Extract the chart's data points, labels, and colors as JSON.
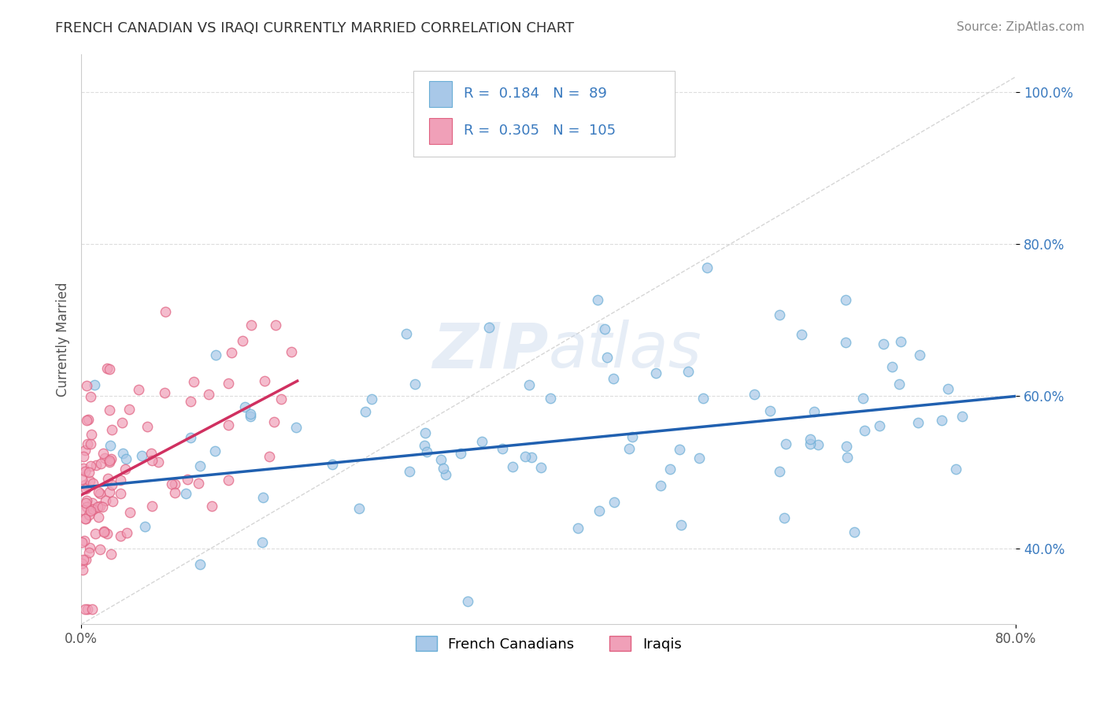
{
  "title": "FRENCH CANADIAN VS IRAQI CURRENTLY MARRIED CORRELATION CHART",
  "source": "Source: ZipAtlas.com",
  "ylabel": "Currently Married",
  "xlim": [
    0.0,
    0.8
  ],
  "ylim": [
    0.3,
    1.05
  ],
  "xticks": [
    0.0,
    0.8
  ],
  "xtick_labels": [
    "0.0%",
    "80.0%"
  ],
  "yticks": [
    0.4,
    0.6,
    0.8,
    1.0
  ],
  "ytick_labels": [
    "40.0%",
    "60.0%",
    "80.0%",
    "100.0%"
  ],
  "blue_color": "#a8c8e8",
  "pink_color": "#f0a0b8",
  "blue_edge_color": "#6aaed6",
  "pink_edge_color": "#e06080",
  "blue_line_color": "#2060b0",
  "pink_line_color": "#d03060",
  "diag_color": "#cccccc",
  "legend_R_blue": "0.184",
  "legend_N_blue": "89",
  "legend_R_pink": "0.305",
  "legend_N_pink": "105",
  "legend_label_blue": "French Canadians",
  "legend_label_pink": "Iraqis",
  "blue_r": 0.184,
  "pink_r": 0.305,
  "blue_n": 89,
  "pink_n": 105,
  "watermark": "ZIPatlas",
  "background_color": "#ffffff",
  "grid_color": "#dddddd",
  "ytick_color": "#3a7abf",
  "title_color": "#333333",
  "source_color": "#888888"
}
